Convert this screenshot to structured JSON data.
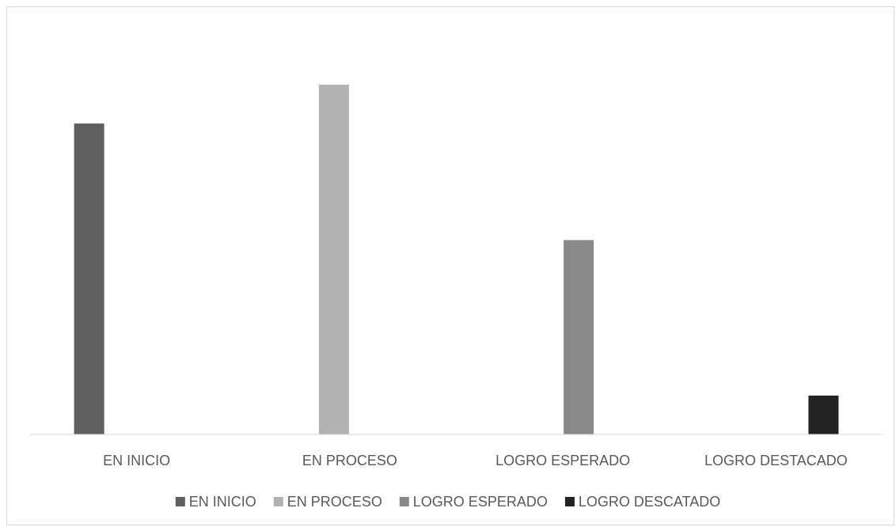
{
  "chart_data": {
    "type": "bar",
    "title": "",
    "xlabel": "",
    "ylabel": "",
    "categories": [
      "EN INICIO",
      "EN PROCESO",
      "LOGRO ESPERADO",
      "LOGRO DESTACADO"
    ],
    "series": [
      {
        "name": "EN INICIO",
        "color": "#5f5f5f",
        "values": [
          40,
          null,
          null,
          null
        ]
      },
      {
        "name": "EN PROCESO",
        "color": "#b2b2b2",
        "values": [
          null,
          45,
          null,
          null
        ]
      },
      {
        "name": "LOGRO ESPERADO",
        "color": "#898989",
        "values": [
          null,
          null,
          25,
          null
        ]
      },
      {
        "name": "LOGRO DESCATADO",
        "color": "#232323",
        "values": [
          null,
          null,
          null,
          5
        ]
      }
    ],
    "ylim": [
      0,
      45
    ],
    "y_axis_visible": false,
    "grid": false,
    "legend_position": "bottom"
  }
}
